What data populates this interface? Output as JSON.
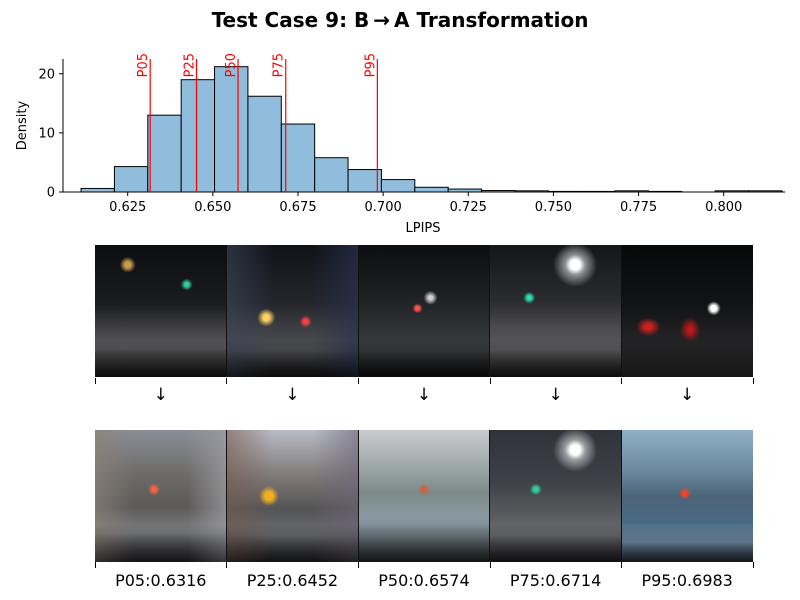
{
  "title": "Test Case 9: B → A Transformation",
  "chart_data": {
    "type": "bar",
    "title": "Test Case 9: B → A Transformation",
    "xlabel": "LPIPS",
    "ylabel": "Density",
    "xlim": [
      0.606,
      0.818
    ],
    "ylim": [
      0,
      22.5
    ],
    "xticks": [
      0.625,
      0.65,
      0.675,
      0.7,
      0.725,
      0.75,
      0.775,
      0.8
    ],
    "xtick_labels": [
      "0.625",
      "0.650",
      "0.675",
      "0.700",
      "0.725",
      "0.750",
      "0.775",
      "0.800"
    ],
    "yticks": [
      0,
      10,
      20
    ],
    "ytick_labels": [
      "0",
      "10",
      "20"
    ],
    "bin_edges": [
      0.6113,
      0.6211,
      0.6309,
      0.6407,
      0.6505,
      0.6603,
      0.6701,
      0.6799,
      0.6897,
      0.6995,
      0.7093,
      0.7191,
      0.7289,
      0.7387,
      0.7485,
      0.7583,
      0.7681,
      0.7779,
      0.7877,
      0.7975,
      0.8073,
      0.8171
    ],
    "values": [
      0.6,
      4.3,
      13.0,
      19.0,
      21.2,
      16.2,
      11.5,
      5.8,
      3.8,
      2.1,
      0.8,
      0.5,
      0.25,
      0.2,
      0.1,
      0.1,
      0.2,
      0.1,
      0.0,
      0.2,
      0.2
    ],
    "bar_color": "#8fbddb",
    "percentiles": [
      {
        "label": "P05",
        "value": 0.6316
      },
      {
        "label": "P25",
        "value": 0.6452
      },
      {
        "label": "P50",
        "value": 0.6574
      },
      {
        "label": "P75",
        "value": 0.6714
      },
      {
        "label": "P95",
        "value": 0.6983
      }
    ],
    "percentile_color": "#ff0000",
    "grid": false
  },
  "arrows": [
    "↓",
    "↓",
    "↓",
    "↓",
    "↓"
  ],
  "sample_labels": [
    "P05:0.6316",
    "P25:0.6452",
    "P50:0.6574",
    "P75:0.6714",
    "P95:0.6983"
  ]
}
